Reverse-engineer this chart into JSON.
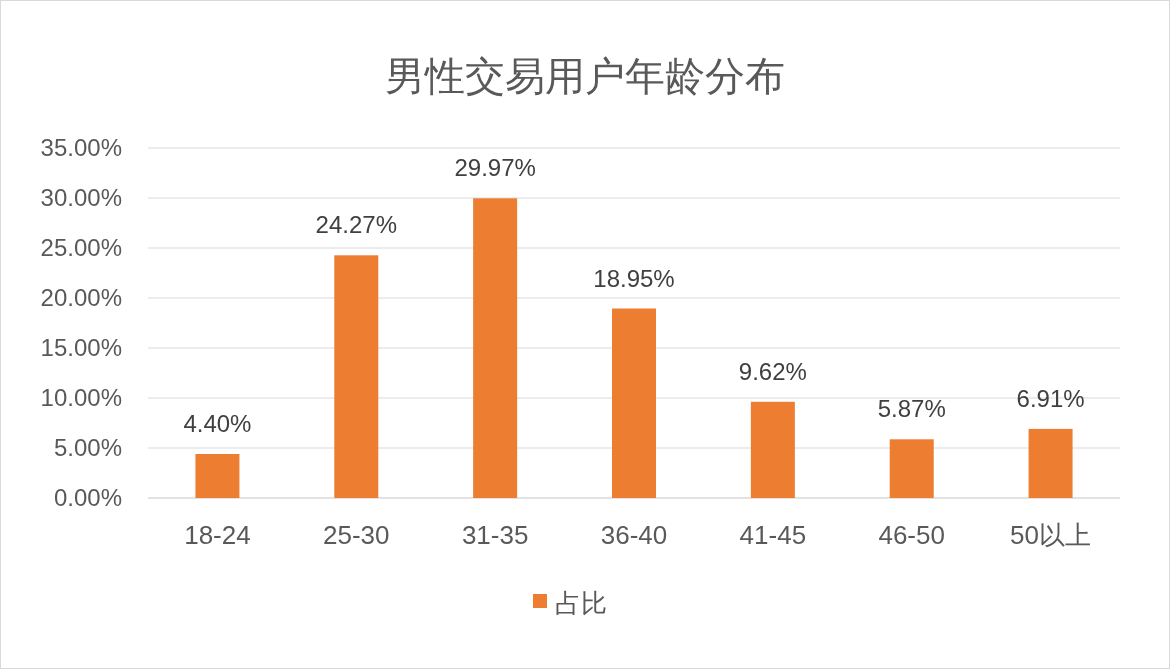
{
  "chart_data": {
    "type": "bar",
    "title": "男性交易用户年龄分布",
    "categories": [
      "18-24",
      "25-30",
      "31-35",
      "36-40",
      "41-45",
      "46-50",
      "50以上"
    ],
    "series": [
      {
        "name": "占比",
        "color": "#ed7d31",
        "values": [
          4.4,
          24.27,
          29.97,
          18.95,
          9.62,
          5.87,
          6.91
        ],
        "value_labels": [
          "4.40%",
          "24.27%",
          "29.97%",
          "18.95%",
          "9.62%",
          "5.87%",
          "6.91%"
        ]
      }
    ],
    "ylim": [
      0,
      35
    ],
    "yticks": [
      {
        "value": 0,
        "label": "0.00%"
      },
      {
        "value": 5,
        "label": "5.00%"
      },
      {
        "value": 10,
        "label": "10.00%"
      },
      {
        "value": 15,
        "label": "15.00%"
      },
      {
        "value": 20,
        "label": "20.00%"
      },
      {
        "value": 25,
        "label": "25.00%"
      },
      {
        "value": 30,
        "label": "30.00%"
      },
      {
        "value": 35,
        "label": "35.00%"
      }
    ],
    "grid": "y",
    "legend": "bottom"
  }
}
